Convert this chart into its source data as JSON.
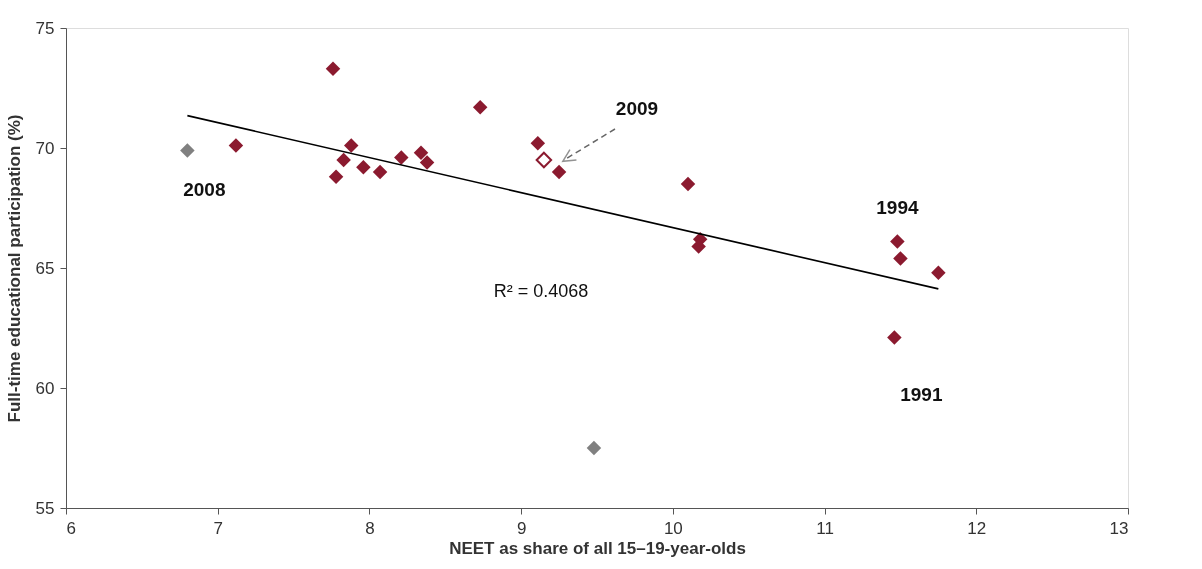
{
  "chart_data": {
    "type": "scatter",
    "xlabel": "NEET as share of all 15–19-year-olds",
    "ylabel": "Full-time educational participation (%)",
    "xlim": [
      6,
      13
    ],
    "xticks": [
      6,
      7,
      8,
      9,
      10,
      11,
      12,
      13
    ],
    "ylim": [
      55,
      75
    ],
    "yticks": [
      55,
      60,
      65,
      70,
      75
    ],
    "grid": false,
    "legend": false,
    "marker": "diamond",
    "series": [
      {
        "color": "#8b1a2f",
        "x": [
          7.12,
          7.76,
          7.88,
          7.83,
          7.78,
          7.96,
          8.07,
          8.21,
          8.34,
          8.38,
          8.73,
          9.11,
          9.25,
          10.1,
          10.18,
          10.17,
          11.48,
          11.5,
          11.75,
          11.46
        ],
        "values": [
          70.1,
          73.3,
          70.1,
          69.5,
          68.8,
          69.2,
          69.0,
          69.6,
          69.8,
          69.4,
          71.7,
          70.2,
          69.0,
          68.5,
          66.2,
          65.9,
          66.1,
          65.4,
          64.8,
          62.1
        ]
      },
      {
        "color": "#808080",
        "x": [
          6.8,
          9.48
        ],
        "values": [
          69.9,
          57.5
        ]
      },
      {
        "color": "#8b1a2f",
        "x": [
          9.15
        ],
        "values": [
          69.5
        ]
      },
      {
        "type": "line",
        "color": "#000000",
        "marker": "none",
        "x": [
          6.8,
          11.75
        ],
        "values": [
          71.35,
          64.13
        ]
      }
    ],
    "annotations": [
      {
        "text": "2008",
        "x": 6.8,
        "y": 69.9
      },
      "2009",
      {
        "text": "1994",
        "x": 11.48,
        "y": 66.1
      },
      {
        "text": "1991",
        "x": 11.46,
        "y": 62.1
      },
      "R² = 0.4068"
    ]
  }
}
